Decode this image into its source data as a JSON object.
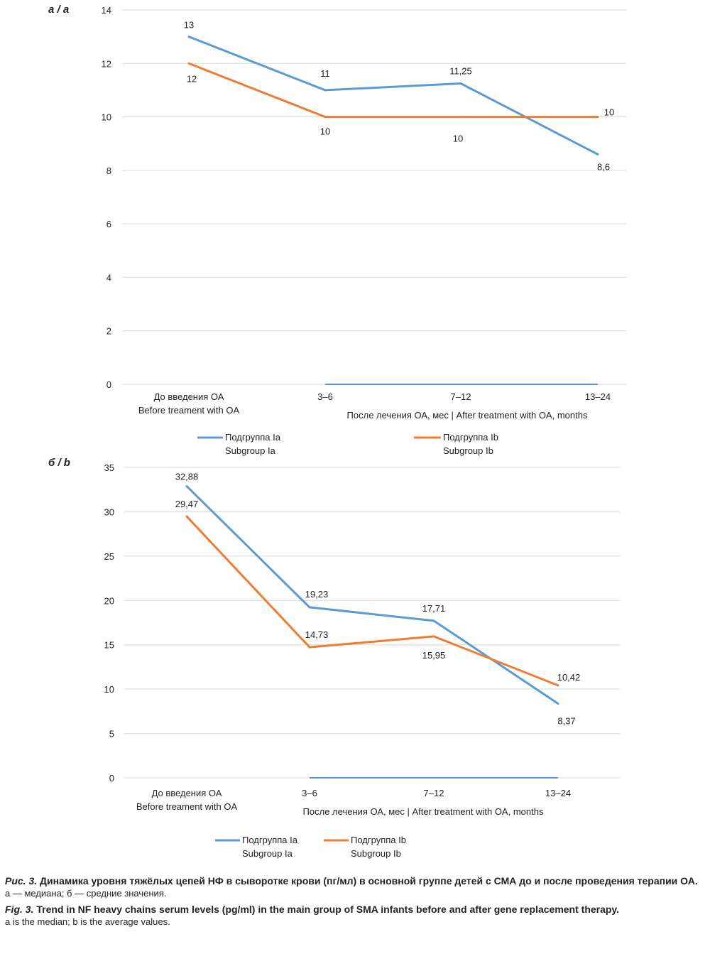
{
  "colors": {
    "subgroup_a": "#5b9bd5",
    "subgroup_b": "#ed7d31",
    "grid": "#d9d9d9"
  },
  "chart_data": [
    {
      "panel_label": "а / a",
      "type": "line",
      "categories": [
        [
          "До введения ОА",
          "Before treament with OA"
        ],
        [
          "3–6"
        ],
        [
          "7–12"
        ],
        [
          "13–24"
        ]
      ],
      "xlabel": "После лечения ОА, мес | After treatment with OA, months",
      "ylim": [
        0,
        14
      ],
      "yticks": [
        0,
        2,
        4,
        6,
        8,
        10,
        12,
        14
      ],
      "grid": true,
      "legend_position": "bottom",
      "series": [
        {
          "name": [
            "Подгруппа Ia",
            "Subgroup Ia"
          ],
          "values": [
            13,
            11,
            11.25,
            8.6
          ],
          "labels": [
            "13",
            "11",
            "11,25",
            "8,6"
          ]
        },
        {
          "name": [
            "Подгруппа Ib",
            "Subgroup Ib"
          ],
          "values": [
            12,
            10,
            10,
            10
          ],
          "labels": [
            "12",
            "10",
            "10",
            "10"
          ]
        }
      ]
    },
    {
      "panel_label": "б / b",
      "type": "line",
      "categories": [
        [
          "До введения ОА",
          "Before treament with OA"
        ],
        [
          "3–6"
        ],
        [
          "7–12"
        ],
        [
          "13–24"
        ]
      ],
      "xlabel": "После лечения ОА, мес | After treatment with OA, months",
      "ylim": [
        0,
        35
      ],
      "yticks": [
        0,
        5,
        10,
        15,
        20,
        25,
        30,
        35
      ],
      "grid": true,
      "legend_position": "bottom",
      "series": [
        {
          "name": [
            "Подгруппа Ia",
            "Subgroup Ia"
          ],
          "values": [
            32.88,
            19.23,
            17.71,
            8.37
          ],
          "labels": [
            "32,88",
            "19,23",
            "17,71",
            "8,37"
          ]
        },
        {
          "name": [
            "Подгруппа Ib",
            "Subgroup Ib"
          ],
          "values": [
            29.47,
            14.73,
            15.95,
            10.42
          ],
          "labels": [
            "29,47",
            "14,73",
            "15,95",
            "10,42"
          ]
        }
      ]
    }
  ],
  "caption": {
    "ru_prefix": "Рис. 3.",
    "ru_title": "Динамика уровня тяжёлых цепей НФ в сыворотке крови (пг/мл) в основной группе детей с СМА до и после проведения терапии ОА.",
    "ru_note": "а — медиана; б — средние значения.",
    "en_prefix": "Fig. 3.",
    "en_title": "Trend in NF heavy chains serum levels (pg/ml) in the main group of SMA infants before and after gene replacement therapy.",
    "en_note": "a is the median; b is the average values."
  }
}
